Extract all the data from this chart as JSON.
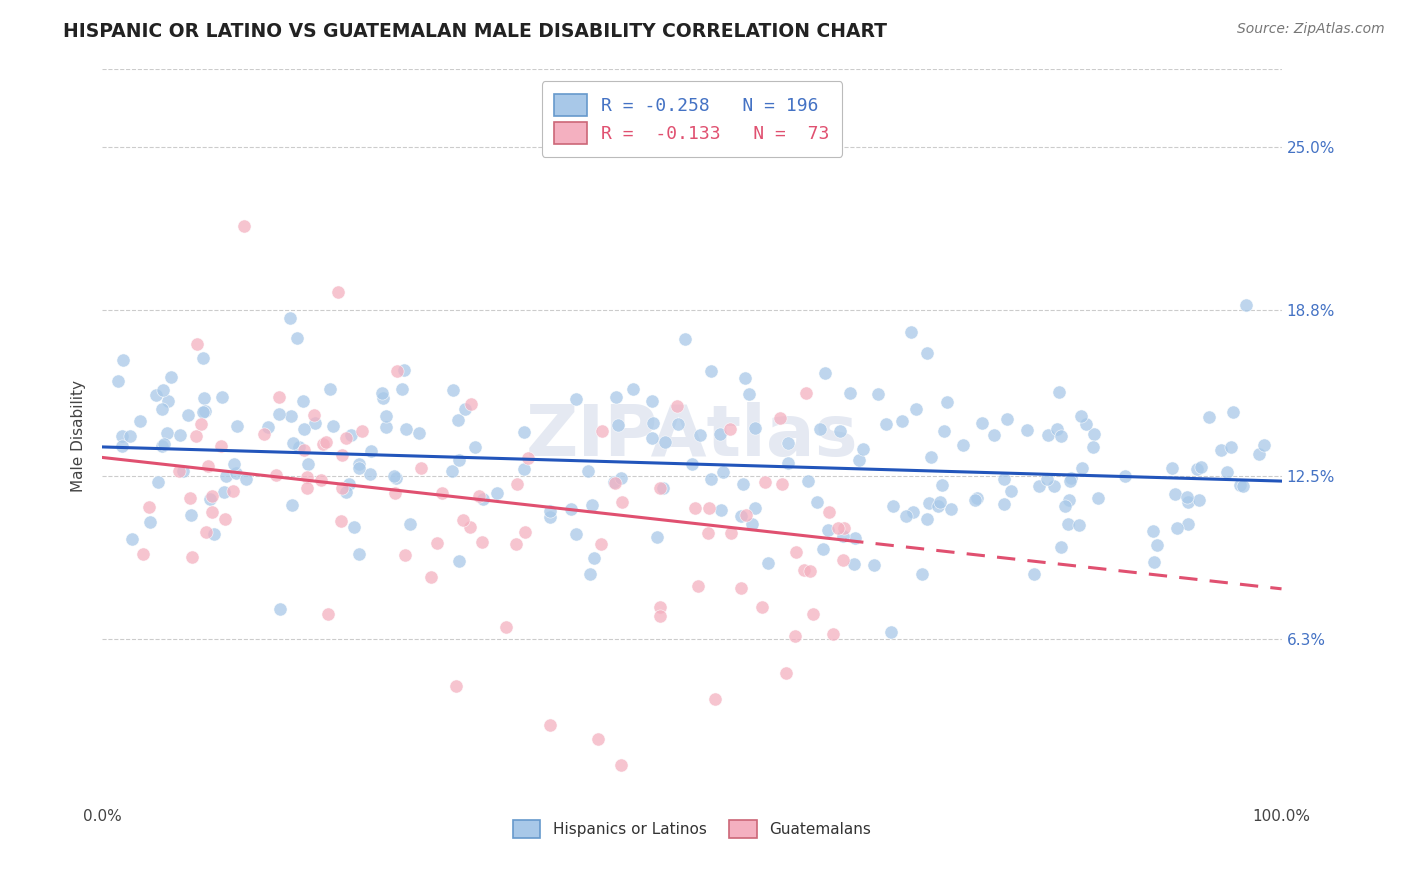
{
  "title": "HISPANIC OR LATINO VS GUATEMALAN MALE DISABILITY CORRELATION CHART",
  "source_text": "Source: ZipAtlas.com",
  "ylabel": "Male Disability",
  "xlim": [
    0,
    100
  ],
  "ylim": [
    0,
    28
  ],
  "ytick_values": [
    6.3,
    12.5,
    18.8,
    25.0
  ],
  "blue_R": -0.258,
  "blue_N": 196,
  "pink_R": -0.133,
  "pink_N": 73,
  "blue_color": "#a8c8e8",
  "pink_color": "#f4b0c0",
  "blue_line_color": "#2255bb",
  "pink_line_color": "#e05070",
  "watermark": "ZIPAtlas",
  "background_color": "#ffffff",
  "grid_color": "#cccccc",
  "blue_intercept": 13.6,
  "blue_slope": -0.013,
  "pink_intercept": 13.2,
  "pink_slope": -0.05,
  "pink_max_x": 63,
  "blue_scatter_std": 2.0,
  "pink_scatter_std": 2.5
}
